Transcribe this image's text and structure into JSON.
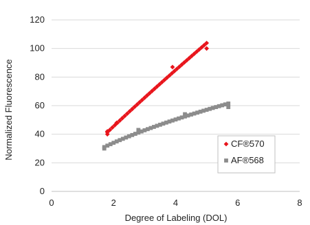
{
  "chart_data": {
    "type": "scatter",
    "xlabel": "Degree of Labeling (DOL)",
    "ylabel": "Normalized Fluorescence",
    "xlim": [
      0,
      8
    ],
    "ylim": [
      0,
      120
    ],
    "xticks": [
      0,
      2,
      4,
      6,
      8
    ],
    "yticks": [
      0,
      20,
      40,
      60,
      80,
      100,
      120
    ],
    "x_tick_labels": [
      "0",
      "2",
      "4",
      "6",
      "8"
    ],
    "y_tick_labels": [
      "0",
      "20",
      "40",
      "60",
      "80",
      "100",
      "120"
    ],
    "grid": "horizontal",
    "legend_position": "bottom-right",
    "series": [
      {
        "name": "CF®570",
        "marker": "diamond",
        "color": "#e8141b",
        "trendline": "power",
        "points": [
          {
            "x": 1.8,
            "y": 40
          },
          {
            "x": 1.8,
            "y": 42
          },
          {
            "x": 2.1,
            "y": 48
          },
          {
            "x": 3.9,
            "y": 87
          },
          {
            "x": 5.0,
            "y": 100
          }
        ]
      },
      {
        "name": "AF®568",
        "marker": "square",
        "color": "#8c8c8c",
        "trendline": "power",
        "points": [
          {
            "x": 1.7,
            "y": 30
          },
          {
            "x": 2.8,
            "y": 43
          },
          {
            "x": 4.3,
            "y": 54
          },
          {
            "x": 5.7,
            "y": 59
          }
        ]
      }
    ]
  }
}
